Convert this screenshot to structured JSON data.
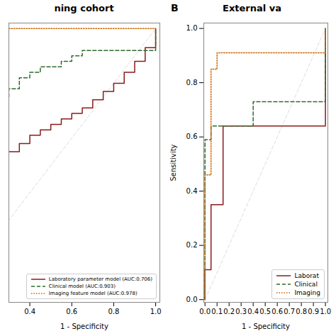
{
  "chart_data": [
    {
      "type": "step",
      "title": "ning cohort",
      "xlabel": "1 - Specificity",
      "xlim": [
        0.3,
        1.02
      ],
      "ylim": [
        0.0,
        1.02
      ],
      "xticks": [
        0.4,
        0.6,
        0.8,
        {
          "value": 1.0,
          "label": "1.0"
        }
      ],
      "yticks": [],
      "tick_labels": "x",
      "legend": "lower right",
      "reference_line": {
        "x": [
          0,
          1
        ],
        "y": [
          0,
          1
        ],
        "color": "lightgray",
        "line_style": "dashed"
      },
      "series": [
        {
          "name": "Laboratory parameter model (AUC:0.706)",
          "color": "#8B1A1A",
          "line_style": "solid",
          "x": [
            0.3,
            0.35,
            0.35,
            0.4,
            0.4,
            0.45,
            0.45,
            0.5,
            0.5,
            0.55,
            0.55,
            0.6,
            0.6,
            0.65,
            0.65,
            0.7,
            0.7,
            0.75,
            0.75,
            0.8,
            0.8,
            0.85,
            0.85,
            0.9,
            0.9,
            0.95,
            0.95,
            1.0
          ],
          "values": [
            0.55,
            0.55,
            0.58,
            0.58,
            0.61,
            0.61,
            0.63,
            0.63,
            0.65,
            0.65,
            0.67,
            0.67,
            0.69,
            0.69,
            0.71,
            0.71,
            0.74,
            0.74,
            0.77,
            0.77,
            0.8,
            0.8,
            0.84,
            0.84,
            0.88,
            0.88,
            0.93,
            1.0
          ]
        },
        {
          "name": "Clinical model (AUC:0.903)",
          "color": "#2D6A2D",
          "line_style": "dashed",
          "x": [
            0.3,
            0.3,
            0.35,
            0.35,
            0.4,
            0.4,
            0.45,
            0.45,
            0.55,
            0.55,
            0.6,
            0.6,
            0.65,
            0.65,
            1.0
          ],
          "values": [
            0.75,
            0.78,
            0.78,
            0.82,
            0.82,
            0.84,
            0.84,
            0.86,
            0.86,
            0.88,
            0.88,
            0.9,
            0.9,
            0.92,
            1.0
          ]
        },
        {
          "name": "Imaging feature model (AUC:0.978)",
          "color": "#CC6600",
          "line_style": "dotted",
          "x": [
            0.3,
            1.0
          ],
          "values": [
            1.0,
            1.0
          ]
        }
      ]
    },
    {
      "type": "step",
      "title": "External va",
      "xlabel": "1 - Specificity",
      "ylabel": "Sensitivity",
      "xlim": [
        -0.01,
        1.02
      ],
      "ylim": [
        -0.01,
        1.02
      ],
      "xticks": [
        {
          "value": 0.0,
          "label": "0.0"
        },
        0.1,
        0.2,
        0.3,
        0.4,
        0.5,
        0.6,
        0.7,
        0.8,
        0.9,
        {
          "value": 1.0,
          "label": "1.0"
        }
      ],
      "yticks": [
        {
          "value": 0.0,
          "label": "0.0"
        },
        0.2,
        0.4,
        0.6,
        0.8,
        {
          "value": 1.0,
          "label": "1.0"
        }
      ],
      "legend": "lower right",
      "annotations": [
        {
          "text": "B"
        }
      ],
      "reference_line": {
        "x": [
          0,
          1
        ],
        "y": [
          0,
          1
        ],
        "color": "lightgray",
        "line_style": "dashed"
      },
      "series": [
        {
          "name": "Laborat",
          "color": "#8B1A1A",
          "line_style": "solid",
          "x": [
            0.0,
            0.0,
            0.05,
            0.05,
            0.15,
            0.15,
            0.25,
            0.25,
            0.4,
            0.4,
            1.0
          ],
          "values": [
            0.0,
            0.11,
            0.11,
            0.35,
            0.35,
            0.64,
            0.64,
            0.64,
            0.64,
            0.64,
            1.0
          ]
        },
        {
          "name": "Clinical",
          "color": "#2D6A2D",
          "line_style": "dashed",
          "x": [
            0.0,
            0.0,
            0.05,
            0.05,
            0.4,
            0.4,
            1.0
          ],
          "values": [
            0.0,
            0.59,
            0.59,
            0.64,
            0.64,
            0.73,
            1.0
          ]
        },
        {
          "name": "Imaging",
          "color": "#CC6600",
          "line_style": "dotted",
          "x": [
            0.0,
            0.0,
            0.05,
            0.05,
            0.1,
            0.1,
            0.4,
            0.4,
            1.0
          ],
          "values": [
            0.0,
            0.46,
            0.46,
            0.85,
            0.85,
            0.91,
            0.91,
            0.91,
            1.0
          ]
        }
      ]
    }
  ]
}
